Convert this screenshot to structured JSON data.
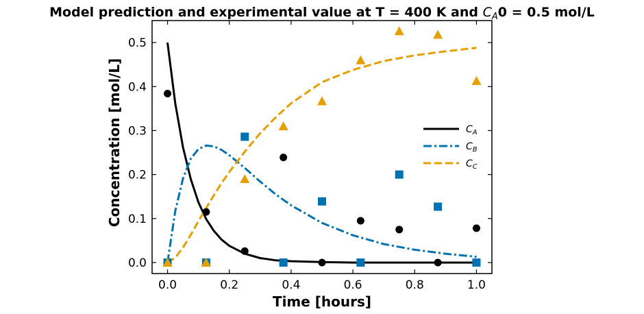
{
  "chart_data": {
    "type": "line",
    "title": "Model prediction and experimental value at T = 400 K and C_A0 = 0.5 mol/L",
    "title_parts": {
      "prefix": "Model prediction and experimental value at T = 400 K and ",
      "var": "C",
      "sub": "A",
      "suffix": "0 = 0.5 mol/L"
    },
    "xlabel": "Time [hours]",
    "ylabel": "Concentration [mol/L]",
    "xlim": [
      -0.05,
      1.05
    ],
    "ylim": [
      -0.025,
      0.55
    ],
    "xticks": [
      0.0,
      0.2,
      0.4,
      0.6,
      0.8,
      1.0
    ],
    "xtick_labels": [
      "0.0",
      "0.2",
      "0.4",
      "0.6",
      "0.8",
      "1.0"
    ],
    "yticks": [
      0.0,
      0.1,
      0.2,
      0.3,
      0.4,
      0.5
    ],
    "ytick_labels": [
      "0.0",
      "0.1",
      "0.2",
      "0.3",
      "0.4",
      "0.5"
    ],
    "grid": false,
    "legend_position": "center-right",
    "model_series": [
      {
        "name": "C_A",
        "label_var": "C",
        "label_sub": "A",
        "color": "#000000",
        "linestyle": "solid",
        "x": [
          0.0,
          0.025,
          0.05,
          0.075,
          0.1,
          0.125,
          0.15,
          0.175,
          0.2,
          0.25,
          0.3,
          0.35,
          0.4,
          0.5,
          0.6,
          0.7,
          0.8,
          0.9,
          1.0
        ],
        "y": [
          0.5,
          0.362,
          0.262,
          0.19,
          0.137,
          0.099,
          0.072,
          0.052,
          0.038,
          0.02,
          0.01,
          0.005,
          0.003,
          0.001,
          0.0,
          0.0,
          0.0,
          0.0,
          0.0
        ]
      },
      {
        "name": "C_B",
        "label_var": "C",
        "label_sub": "B",
        "color": "#0072b2",
        "linestyle": "dashdot",
        "x": [
          0.0,
          0.025,
          0.05,
          0.075,
          0.1,
          0.125,
          0.15,
          0.175,
          0.2,
          0.25,
          0.3,
          0.35,
          0.4,
          0.5,
          0.6,
          0.7,
          0.8,
          0.9,
          1.0
        ],
        "y": [
          0.0,
          0.117,
          0.191,
          0.236,
          0.258,
          0.266,
          0.264,
          0.256,
          0.244,
          0.215,
          0.184,
          0.155,
          0.13,
          0.09,
          0.062,
          0.042,
          0.029,
          0.02,
          0.013
        ]
      },
      {
        "name": "C_C",
        "label_var": "C",
        "label_sub": "C",
        "color": "#e69f00",
        "linestyle": "dashed",
        "x": [
          0.0,
          0.025,
          0.05,
          0.075,
          0.1,
          0.125,
          0.15,
          0.175,
          0.2,
          0.25,
          0.3,
          0.35,
          0.4,
          0.5,
          0.6,
          0.7,
          0.8,
          0.9,
          1.0
        ],
        "y": [
          0.0,
          0.011,
          0.034,
          0.063,
          0.094,
          0.124,
          0.153,
          0.181,
          0.206,
          0.252,
          0.294,
          0.33,
          0.362,
          0.41,
          0.438,
          0.458,
          0.471,
          0.48,
          0.488
        ]
      }
    ],
    "experimental_series": [
      {
        "name": "C_A measured",
        "marker": "circle",
        "color": "#000000",
        "x": [
          0.0,
          0.125,
          0.25,
          0.375,
          0.5,
          0.625,
          0.75,
          0.875,
          1.0
        ],
        "y": [
          0.384,
          0.115,
          0.026,
          0.239,
          0.0,
          0.095,
          0.075,
          0.0,
          0.078
        ]
      },
      {
        "name": "C_B measured",
        "marker": "square",
        "color": "#0072b2",
        "x": [
          0.0,
          0.125,
          0.25,
          0.375,
          0.5,
          0.625,
          0.75,
          0.875,
          1.0
        ],
        "y": [
          0.0,
          0.0,
          0.286,
          0.0,
          0.139,
          0.0,
          0.2,
          0.127,
          0.0
        ]
      },
      {
        "name": "C_C measured",
        "marker": "triangle",
        "color": "#e69f00",
        "x": [
          0.0,
          0.125,
          0.25,
          0.375,
          0.5,
          0.625,
          0.75,
          0.875,
          1.0
        ],
        "y": [
          0.0,
          0.0,
          0.19,
          0.31,
          0.367,
          0.46,
          0.526,
          0.518,
          0.413
        ]
      }
    ]
  }
}
